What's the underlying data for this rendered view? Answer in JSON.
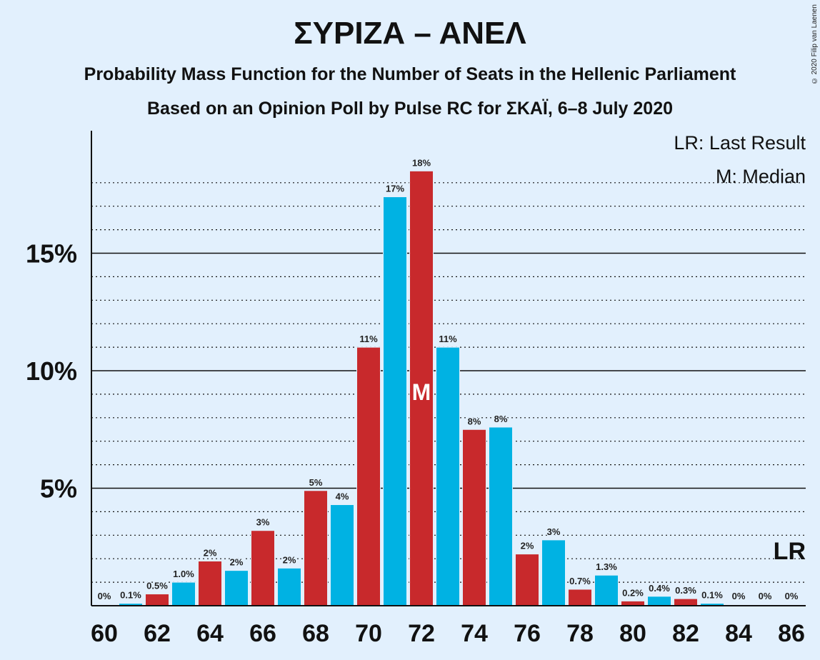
{
  "chart_data": {
    "type": "bar",
    "title": "ΣΥΡΙΖΑ – ΑΝΕΛ",
    "subtitle": "Probability Mass Function for the Number of Seats in the Hellenic Parliament",
    "subtitle2": "Based on an Opinion Poll by Pulse RC for ΣΚΑΪ, 6–8 July 2020",
    "copyright": "© 2020 Filip van Laenen",
    "legend": [
      "LR: Last Result",
      "M: Median"
    ],
    "categories": [
      60,
      61,
      62,
      63,
      64,
      65,
      66,
      67,
      68,
      69,
      70,
      71,
      72,
      73,
      74,
      75,
      76,
      77,
      78,
      79,
      80,
      81,
      82,
      83,
      84,
      85,
      86
    ],
    "values": [
      0,
      0.1,
      0.5,
      1.0,
      1.9,
      1.5,
      3.2,
      1.6,
      4.9,
      4.3,
      11.0,
      17.4,
      18.5,
      11.0,
      7.5,
      7.6,
      2.2,
      2.8,
      0.7,
      1.3,
      0.2,
      0.4,
      0.3,
      0.1,
      0,
      0,
      0
    ],
    "data_labels": [
      "0%",
      "0.1%",
      "0.5%",
      "1.0%",
      "2%",
      "2%",
      "3%",
      "2%",
      "5%",
      "4%",
      "11%",
      "17%",
      "18%",
      "11%",
      "8%",
      "8%",
      "2%",
      "3%",
      "0.7%",
      "1.3%",
      "0.2%",
      "0.4%",
      "0.3%",
      "0.1%",
      "0%",
      "0%",
      "0%"
    ],
    "colors": [
      "#c8292c",
      "#00b2e3"
    ],
    "yticks": [
      {
        "value": 5,
        "label": "5%"
      },
      {
        "value": 10,
        "label": "10%"
      },
      {
        "value": 15,
        "label": "15%"
      }
    ],
    "minor_gridlines": [
      1,
      2,
      3,
      4,
      6,
      7,
      8,
      9,
      11,
      12,
      13,
      14,
      16,
      17,
      18
    ],
    "xtick_labels": [
      "60",
      "62",
      "64",
      "66",
      "68",
      "70",
      "72",
      "74",
      "76",
      "78",
      "80",
      "82",
      "84",
      "86"
    ],
    "median_seat": 72,
    "median_marker": "M",
    "last_result_marker": "LR",
    "last_result_seat": 86,
    "ylim": [
      0,
      20.1
    ]
  }
}
